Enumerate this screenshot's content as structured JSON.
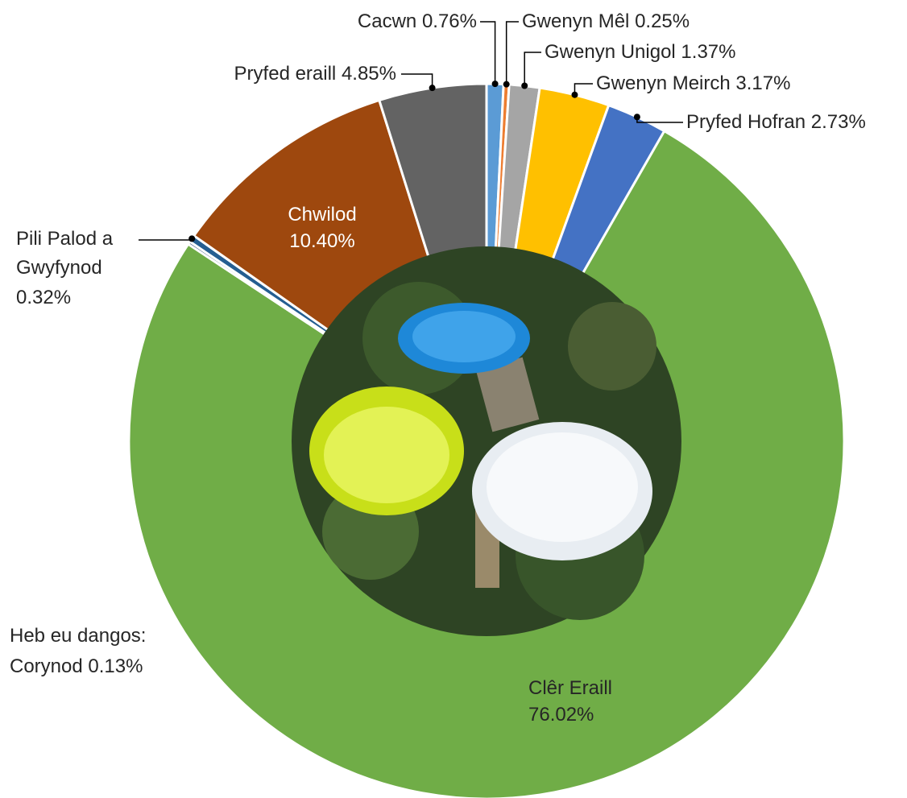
{
  "chart_data": {
    "type": "donut",
    "categories": [
      "Cacwn",
      "Gwenyn Mêl",
      "Gwenyn Unigol",
      "Gwenyn Meirch",
      "Pryfed Hofran",
      "Clêr Eraill",
      "Corynod",
      "Pili Palod a Gwyfynod",
      "Chwilod",
      "Pryfed eraill"
    ],
    "values": [
      0.76,
      0.25,
      1.37,
      3.17,
      2.73,
      76.02,
      0.13,
      0.32,
      10.4,
      4.85
    ],
    "value_labels": [
      "0.76%",
      "0.25%",
      "1.37%",
      "3.17%",
      "2.73%",
      "76.02%",
      "0.13%",
      "0.32%",
      "10.40%",
      "4.85%"
    ],
    "colors": [
      "#5b9bd5",
      "#ed7d31",
      "#a5a5a5",
      "#ffc000",
      "#4472c4",
      "#70ad47",
      "#264478",
      "#255e91",
      "#9e480e",
      "#636363"
    ],
    "annotation": "Heb eu dangos:"
  }
}
